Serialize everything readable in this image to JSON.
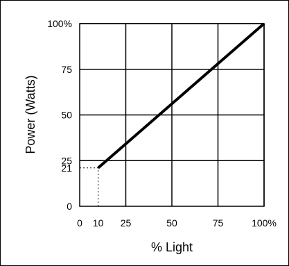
{
  "chart_data": {
    "type": "line",
    "title": "",
    "xlabel": "% Light",
    "ylabel": "Power (Watts)",
    "xlim": [
      0,
      100
    ],
    "ylim": [
      0,
      100
    ],
    "grid": true,
    "x_ticks": [
      {
        "value": 0,
        "label": "0"
      },
      {
        "value": 10,
        "label": "10"
      },
      {
        "value": 25,
        "label": "25"
      },
      {
        "value": 50,
        "label": "50"
      },
      {
        "value": 75,
        "label": "75"
      },
      {
        "value": 100,
        "label": "100%"
      }
    ],
    "y_ticks": [
      {
        "value": 0,
        "label": "0"
      },
      {
        "value": 21,
        "label": "21"
      },
      {
        "value": 25,
        "label": "25"
      },
      {
        "value": 50,
        "label": "50"
      },
      {
        "value": 75,
        "label": "75"
      },
      {
        "value": 100,
        "label": "100%"
      }
    ],
    "x_grid": [
      25,
      50,
      75,
      100
    ],
    "y_grid": [
      25,
      50,
      75,
      100
    ],
    "series": [
      {
        "x": [
          10,
          100
        ],
        "y": [
          21,
          100
        ],
        "color": "#000000"
      }
    ],
    "reference_lines": [
      {
        "x": [
          0,
          10,
          10
        ],
        "y": [
          21,
          21,
          0
        ],
        "style": "dotted"
      }
    ]
  }
}
